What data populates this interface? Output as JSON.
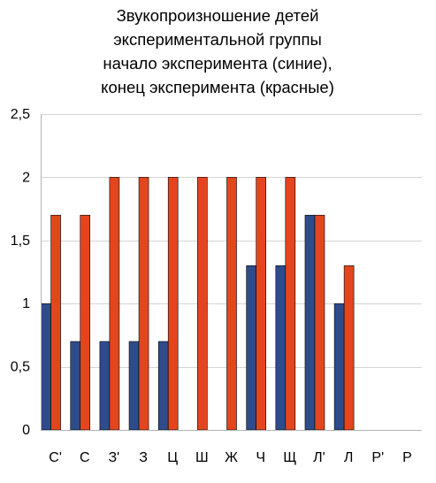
{
  "chart_data": {
    "type": "bar",
    "title_lines": [
      "Звукопроизношение детей",
      "экспериментальной группы",
      "начало эксперимента (синие),",
      "конец эксперимента (красные)"
    ],
    "categories": [
      "С'",
      "С",
      "З'",
      "З",
      "Ц",
      "Ш",
      "Ж",
      "Ч",
      "Щ",
      "Л'",
      "Л",
      "Р'",
      "Р"
    ],
    "series": [
      {
        "values": [
          1,
          0.7,
          0.7,
          0.7,
          0.7,
          0,
          0,
          1.3,
          1.3,
          1.7,
          1,
          0,
          0
        ],
        "color": "#2e4b8c"
      },
      {
        "values": [
          1.7,
          1.7,
          2,
          2,
          2,
          2,
          2,
          2,
          2,
          1.7,
          1.3,
          0,
          0
        ],
        "color": "#e3461e"
      }
    ],
    "ylim": [
      0,
      2.5
    ],
    "yticks": [
      0,
      0.5,
      1,
      1.5,
      2,
      2.5
    ],
    "ytick_labels": [
      "0",
      "0,5",
      "1",
      "1,5",
      "2",
      "2,5"
    ],
    "grid": true,
    "legend": "none"
  }
}
